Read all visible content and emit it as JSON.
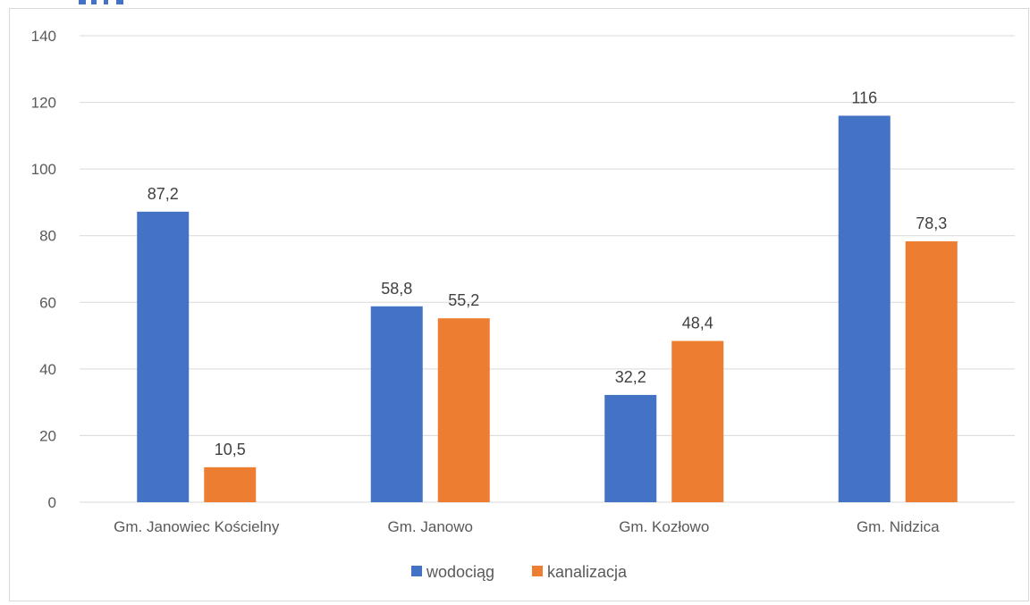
{
  "chart_data": {
    "type": "bar",
    "categories": [
      "Gm. Janowiec Kościelny",
      "Gm. Janowo",
      "Gm. Kozłowo",
      "Gm. Nidzica"
    ],
    "series": [
      {
        "name": "wodociąg",
        "values": [
          87.2,
          58.8,
          32.2,
          116
        ],
        "labels": [
          "87,2",
          "58,8",
          "32,2",
          "116"
        ],
        "color": "#4472c4"
      },
      {
        "name": "kanalizacja",
        "values": [
          10.5,
          55.2,
          48.4,
          78.3
        ],
        "labels": [
          "10,5",
          "55,2",
          "48,4",
          "78,3"
        ],
        "color": "#ed7d31"
      }
    ],
    "ylim": [
      0,
      140
    ],
    "yticks": [
      0,
      20,
      40,
      60,
      80,
      100,
      120,
      140
    ],
    "grid": true,
    "gridColor": "#d9d9d9",
    "legend_position": "bottom"
  }
}
